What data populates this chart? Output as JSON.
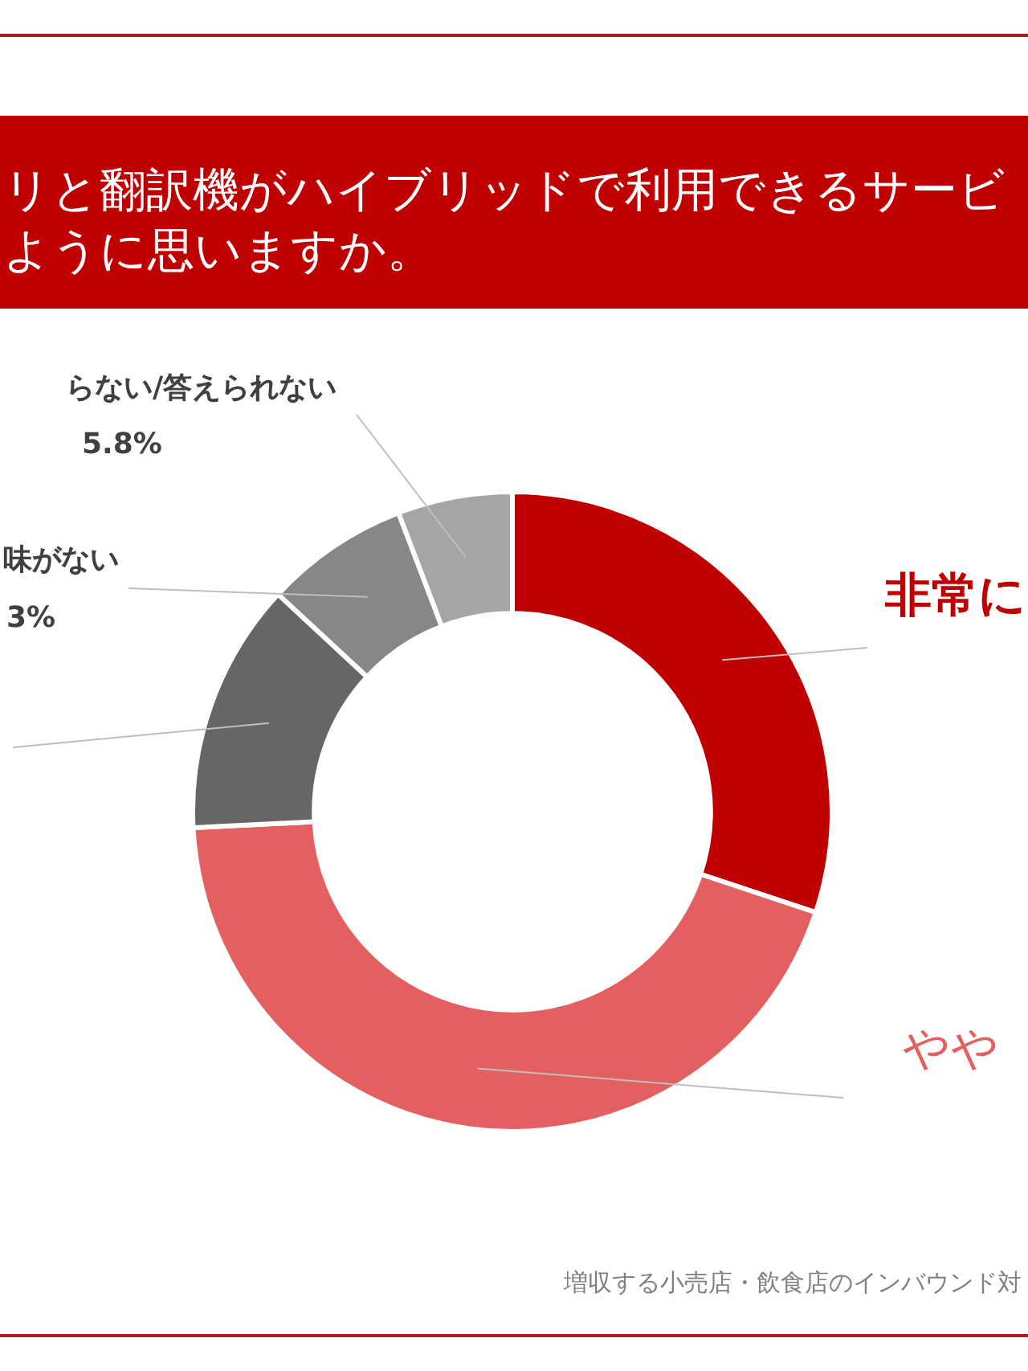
{
  "chart_data": {
    "type": "donut",
    "title": "リと翻訳機がハイブリッドで利用できるサービように思いますか。",
    "categories": [
      "非常に",
      "やや",
      null,
      "味がない",
      "らない/答えられない"
    ],
    "values": [
      30.1,
      44.1,
      12.7,
      7.3,
      5.8
    ],
    "colors": [
      "#c00000",
      "#e46060",
      "#666666",
      "#878787",
      "#a5a5a5"
    ],
    "value_labels": [
      null,
      null,
      null,
      null,
      "5.8%"
    ],
    "annotations": [
      "増収する小売店・飲食店のインバウンド対",
      "3%"
    ]
  }
}
